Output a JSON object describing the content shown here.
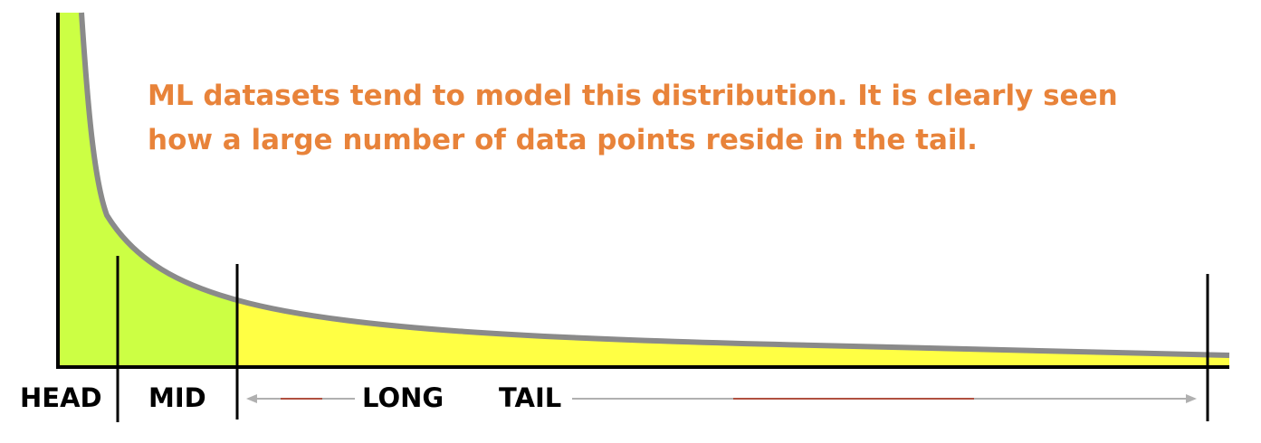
{
  "caption": {
    "line1": "ML datasets tend to model this distribution. It is clearly seen",
    "line2": "how a large number of data points reside in the tail.",
    "color": "#e8833a"
  },
  "segments": {
    "head": "HEAD",
    "mid": "MID",
    "long": "LONG",
    "tail": "TAIL"
  },
  "colors": {
    "head_mid_fill": "#ccff44",
    "tail_fill": "#ffff44",
    "curve": "#8a8a8a",
    "axis": "#000000",
    "arrow": "#b0b0b0",
    "arrow_accent": "#b05040"
  }
}
